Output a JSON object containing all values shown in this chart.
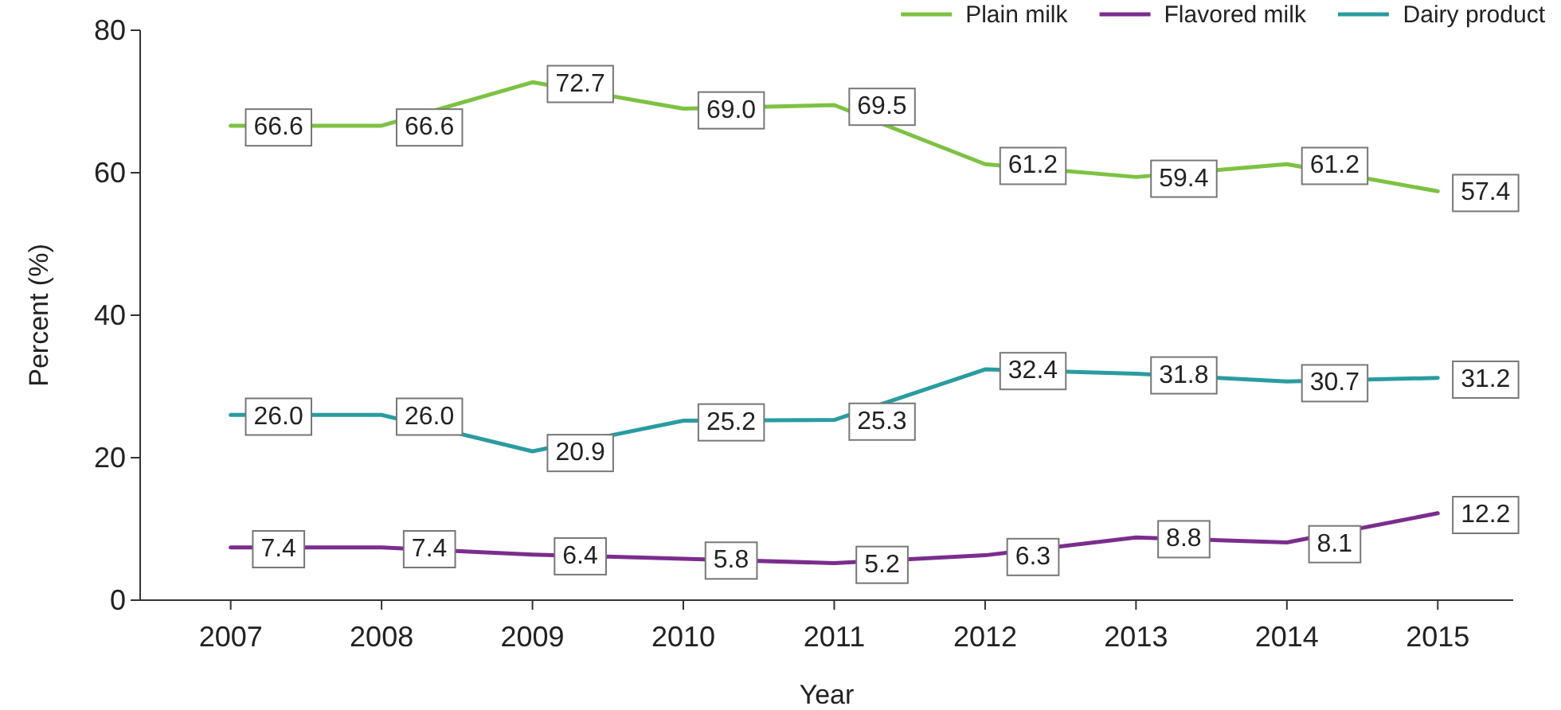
{
  "chart_data": {
    "type": "line",
    "xlabel": "Year",
    "ylabel": "Percent (%)",
    "x": [
      2007,
      2008,
      2009,
      2010,
      2011,
      2012,
      2013,
      2014,
      2015
    ],
    "xlim": [
      2006.4,
      2015.5
    ],
    "xticks": [
      2007,
      2008,
      2009,
      2010,
      2011,
      2012,
      2013,
      2014,
      2015
    ],
    "ylim": [
      0,
      80
    ],
    "yticks": [
      0,
      20,
      40,
      60,
      80
    ],
    "grid": false,
    "legend": "top right",
    "marker": "none",
    "line_style": "solid",
    "series": [
      {
        "name": "Plain milk",
        "color": "#7dc242",
        "values": [
          66.6,
          66.6,
          72.7,
          69.0,
          69.5,
          61.2,
          59.4,
          61.2,
          57.4
        ],
        "value_labels": [
          "66.6",
          "66.6",
          "72.7",
          "69.0",
          "69.5",
          "61.2",
          "59.4",
          "61.2",
          "57.4"
        ]
      },
      {
        "name": "Flavored milk",
        "color": "#7b2d8e",
        "values": [
          7.4,
          7.4,
          6.4,
          5.8,
          5.2,
          6.3,
          8.8,
          8.1,
          12.2
        ],
        "value_labels": [
          "7.4",
          "7.4",
          "6.4",
          "5.8",
          "5.2",
          "6.3",
          "8.8",
          "8.1",
          "12.2"
        ]
      },
      {
        "name": "Dairy product",
        "color": "#2a9ca0",
        "values": [
          26.0,
          26.0,
          20.9,
          25.2,
          25.3,
          32.4,
          31.8,
          30.7,
          31.2
        ],
        "value_labels": [
          "26.0",
          "26.0",
          "20.9",
          "25.2",
          "25.3",
          "32.4",
          "31.8",
          "30.7",
          "31.2"
        ]
      }
    ]
  }
}
